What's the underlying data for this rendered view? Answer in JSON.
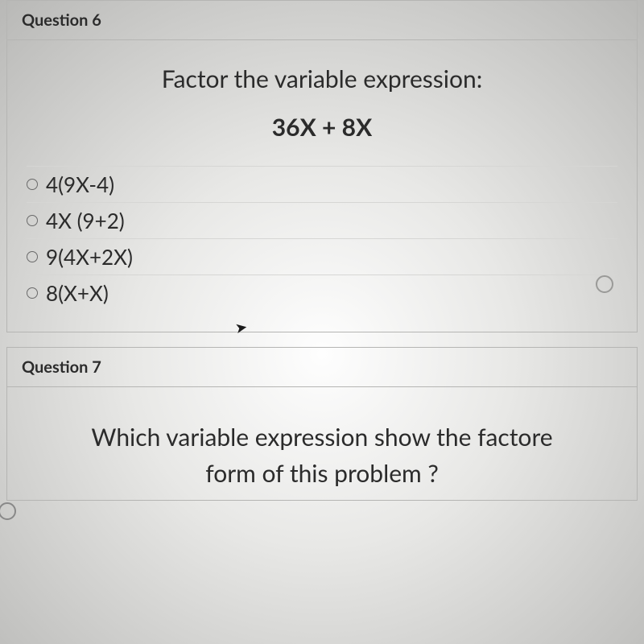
{
  "question6": {
    "header": "Question 6",
    "prompt": "Factor the variable expression:",
    "expression": "36X  + 8X",
    "options": [
      "4(9X-4)",
      "4X (9+2)",
      "9(4X+2X)",
      "8(X+X)"
    ]
  },
  "question7": {
    "header": "Question 7",
    "prompt_line1": "Which variable expression show the factore",
    "prompt_line2": "form of this problem ?"
  },
  "colors": {
    "text": "#2b2b2b",
    "border": "#b5b5b3",
    "row_border": "#d6d6d4",
    "radio_border": "#6a6a6a"
  }
}
